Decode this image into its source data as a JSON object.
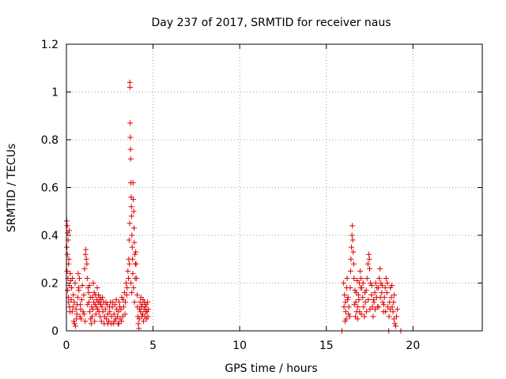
{
  "chart_data": {
    "type": "scatter",
    "title": "Day 237 of 2017, SRMTID for receiver naus",
    "xlabel": "GPS time / hours",
    "ylabel": "SRMTID / TECUs",
    "xlim": [
      0,
      24
    ],
    "ylim": [
      0,
      1.2
    ],
    "x_ticks": [
      0,
      5,
      10,
      15,
      20
    ],
    "x_tick_labels": [
      "0",
      "5",
      "10",
      "15",
      "20"
    ],
    "y_ticks": [
      0,
      0.2,
      0.4,
      0.6,
      0.8,
      1.0,
      1.2
    ],
    "y_tick_labels": [
      "0",
      "0.2",
      "0.4",
      "0.6",
      "0.8",
      "1",
      "1.2"
    ],
    "grid": true,
    "marker": "+",
    "colors": {
      "series": "#e00000",
      "axis": "#000000",
      "grid": "#a0a0a0"
    },
    "series": [
      {
        "name": "SRMTID",
        "points": [
          [
            0.02,
            0.46
          ],
          [
            0.05,
            0.44
          ],
          [
            0.08,
            0.41
          ],
          [
            0.1,
            0.38
          ],
          [
            0.03,
            0.35
          ],
          [
            0.06,
            0.32
          ],
          [
            0.12,
            0.28
          ],
          [
            0.04,
            0.25
          ],
          [
            0.09,
            0.22
          ],
          [
            0.15,
            0.19
          ],
          [
            0.07,
            0.17
          ],
          [
            0.11,
            0.14
          ],
          [
            0.13,
            0.12
          ],
          [
            0.18,
            0.1
          ],
          [
            0.2,
            0.08
          ],
          [
            0.16,
            0.42
          ],
          [
            0.14,
            0.3
          ],
          [
            0.22,
            0.24
          ],
          [
            0.25,
            0.21
          ],
          [
            0.3,
            0.18
          ],
          [
            0.35,
            0.22
          ],
          [
            0.4,
            0.15
          ],
          [
            0.45,
            0.12
          ],
          [
            0.5,
            0.2
          ],
          [
            0.55,
            0.09
          ],
          [
            0.6,
            0.07
          ],
          [
            0.65,
            0.14
          ],
          [
            0.7,
            0.18
          ],
          [
            0.75,
            0.22
          ],
          [
            0.8,
            0.11
          ],
          [
            0.85,
            0.05
          ],
          [
            0.28,
            0.13
          ],
          [
            0.33,
            0.08
          ],
          [
            0.38,
            0.1
          ],
          [
            0.42,
            0.04
          ],
          [
            0.47,
            0.03
          ],
          [
            0.52,
            0.02
          ],
          [
            0.58,
            0.05
          ],
          [
            0.62,
            0.11
          ],
          [
            0.68,
            0.24
          ],
          [
            0.72,
            0.17
          ],
          [
            0.78,
            0.06
          ],
          [
            0.82,
            0.09
          ],
          [
            0.88,
            0.13
          ],
          [
            0.92,
            0.19
          ],
          [
            0.96,
            0.08
          ],
          [
            1.0,
            0.15
          ],
          [
            1.05,
            0.26
          ],
          [
            1.1,
            0.32
          ],
          [
            1.12,
            0.34
          ],
          [
            1.15,
            0.3
          ],
          [
            1.18,
            0.28
          ],
          [
            1.2,
            0.22
          ],
          [
            1.25,
            0.18
          ],
          [
            1.3,
            0.12
          ],
          [
            1.35,
            0.08
          ],
          [
            1.4,
            0.05
          ],
          [
            1.45,
            0.1
          ],
          [
            1.5,
            0.14
          ],
          [
            1.55,
            0.2
          ],
          [
            1.6,
            0.16
          ],
          [
            1.65,
            0.11
          ],
          [
            1.7,
            0.07
          ],
          [
            1.75,
            0.13
          ],
          [
            1.8,
            0.09
          ],
          [
            1.85,
            0.15
          ],
          [
            1.9,
            0.12
          ],
          [
            1.95,
            0.06
          ],
          [
            1.02,
            0.07
          ],
          [
            1.08,
            0.04
          ],
          [
            1.22,
            0.11
          ],
          [
            1.28,
            0.16
          ],
          [
            1.33,
            0.19
          ],
          [
            1.38,
            0.14
          ],
          [
            1.43,
            0.03
          ],
          [
            1.48,
            0.06
          ],
          [
            1.53,
            0.09
          ],
          [
            1.58,
            0.12
          ],
          [
            1.63,
            0.04
          ],
          [
            1.68,
            0.15
          ],
          [
            1.73,
            0.1
          ],
          [
            1.78,
            0.18
          ],
          [
            1.83,
            0.12
          ],
          [
            1.88,
            0.08
          ],
          [
            1.93,
            0.14
          ],
          [
            1.98,
            0.11
          ],
          [
            2.0,
            0.13
          ],
          [
            2.05,
            0.1
          ],
          [
            2.1,
            0.08
          ],
          [
            2.15,
            0.12
          ],
          [
            2.2,
            0.06
          ],
          [
            2.25,
            0.09
          ],
          [
            2.3,
            0.05
          ],
          [
            2.35,
            0.11
          ],
          [
            2.4,
            0.07
          ],
          [
            2.45,
            0.04
          ],
          [
            2.5,
            0.08
          ],
          [
            2.55,
            0.12
          ],
          [
            2.6,
            0.06
          ],
          [
            2.65,
            0.1
          ],
          [
            2.7,
            0.03
          ],
          [
            2.75,
            0.07
          ],
          [
            2.8,
            0.11
          ],
          [
            2.85,
            0.05
          ],
          [
            2.9,
            0.09
          ],
          [
            2.95,
            0.06
          ],
          [
            2.02,
            0.04
          ],
          [
            2.08,
            0.14
          ],
          [
            2.18,
            0.03
          ],
          [
            2.28,
            0.12
          ],
          [
            2.38,
            0.03
          ],
          [
            2.48,
            0.1
          ],
          [
            2.58,
            0.03
          ],
          [
            2.68,
            0.12
          ],
          [
            2.78,
            0.04
          ],
          [
            2.88,
            0.13
          ],
          [
            2.98,
            0.03
          ],
          [
            3.0,
            0.08
          ],
          [
            3.05,
            0.12
          ],
          [
            3.1,
            0.05
          ],
          [
            3.15,
            0.09
          ],
          [
            3.2,
            0.14
          ],
          [
            3.25,
            0.06
          ],
          [
            3.3,
            0.1
          ],
          [
            3.35,
            0.16
          ],
          [
            3.4,
            0.12
          ],
          [
            3.45,
            0.2
          ],
          [
            3.5,
            0.18
          ],
          [
            3.55,
            0.25
          ],
          [
            3.6,
            0.3
          ],
          [
            3.62,
            0.38
          ],
          [
            3.65,
            0.45
          ],
          [
            3.66,
            1.04
          ],
          [
            3.67,
            1.02
          ],
          [
            3.68,
            0.87
          ],
          [
            3.69,
            0.81
          ],
          [
            3.7,
            0.76
          ],
          [
            3.71,
            0.72
          ],
          [
            3.72,
            0.62
          ],
          [
            3.74,
            0.56
          ],
          [
            3.75,
            0.52
          ],
          [
            3.76,
            0.48
          ],
          [
            3.78,
            0.4
          ],
          [
            3.8,
            0.35
          ],
          [
            3.82,
            0.3
          ],
          [
            3.84,
            0.62
          ],
          [
            3.86,
            0.55
          ],
          [
            3.88,
            0.5
          ],
          [
            3.9,
            0.43
          ],
          [
            3.92,
            0.37
          ],
          [
            3.95,
            0.32
          ],
          [
            3.98,
            0.28
          ],
          [
            3.02,
            0.03
          ],
          [
            3.08,
            0.1
          ],
          [
            3.18,
            0.04
          ],
          [
            3.28,
            0.13
          ],
          [
            3.38,
            0.07
          ],
          [
            3.48,
            0.15
          ],
          [
            3.58,
            0.22
          ],
          [
            3.63,
            0.28
          ],
          [
            3.73,
            0.2
          ],
          [
            3.77,
            0.16
          ],
          [
            3.83,
            0.24
          ],
          [
            3.87,
            0.18
          ],
          [
            3.93,
            0.12
          ],
          [
            3.97,
            0.22
          ],
          [
            4.0,
            0.33
          ],
          [
            4.02,
            0.28
          ],
          [
            4.05,
            0.22
          ],
          [
            4.08,
            0.15
          ],
          [
            4.1,
            0.1
          ],
          [
            4.12,
            0.06
          ],
          [
            4.15,
            0.03
          ],
          [
            4.18,
            0.01
          ],
          [
            4.2,
            0.05
          ],
          [
            4.22,
            0.09
          ],
          [
            4.25,
            0.12
          ],
          [
            4.28,
            0.08
          ],
          [
            4.3,
            0.14
          ],
          [
            4.32,
            0.1
          ],
          [
            4.35,
            0.06
          ],
          [
            4.38,
            0.11
          ],
          [
            4.4,
            0.07
          ],
          [
            4.42,
            0.13
          ],
          [
            4.45,
            0.04
          ],
          [
            4.48,
            0.09
          ],
          [
            4.5,
            0.12
          ],
          [
            4.52,
            0.06
          ],
          [
            4.55,
            0.1
          ],
          [
            4.58,
            0.08
          ],
          [
            4.6,
            0.11
          ],
          [
            4.62,
            0.05
          ],
          [
            4.65,
            0.08
          ],
          [
            4.68,
            0.12
          ],
          [
            4.7,
            0.06
          ],
          [
            4.72,
            0.09
          ],
          [
            15.9,
            0.0
          ],
          [
            16.0,
            0.2
          ],
          [
            16.05,
            0.15
          ],
          [
            16.1,
            0.12
          ],
          [
            16.12,
            0.08
          ],
          [
            16.15,
            0.05
          ],
          [
            16.18,
            0.18
          ],
          [
            16.2,
            0.22
          ],
          [
            16.25,
            0.14
          ],
          [
            16.3,
            0.1
          ],
          [
            16.35,
            0.06
          ],
          [
            16.4,
            0.25
          ],
          [
            16.42,
            0.3
          ],
          [
            16.45,
            0.35
          ],
          [
            16.48,
            0.4
          ],
          [
            16.5,
            0.44
          ],
          [
            16.52,
            0.38
          ],
          [
            16.55,
            0.33
          ],
          [
            16.58,
            0.28
          ],
          [
            16.6,
            0.22
          ],
          [
            16.65,
            0.17
          ],
          [
            16.7,
            0.12
          ],
          [
            16.75,
            0.08
          ],
          [
            16.8,
            0.05
          ],
          [
            16.85,
            0.15
          ],
          [
            16.9,
            0.2
          ],
          [
            16.95,
            0.25
          ],
          [
            16.02,
            0.1
          ],
          [
            16.08,
            0.04
          ],
          [
            16.22,
            0.13
          ],
          [
            16.28,
            0.07
          ],
          [
            16.38,
            0.18
          ],
          [
            16.62,
            0.11
          ],
          [
            16.68,
            0.06
          ],
          [
            16.72,
            0.16
          ],
          [
            16.78,
            0.21
          ],
          [
            16.82,
            0.1
          ],
          [
            16.88,
            0.13
          ],
          [
            16.92,
            0.08
          ],
          [
            16.98,
            0.18
          ],
          [
            17.0,
            0.22
          ],
          [
            17.05,
            0.18
          ],
          [
            17.1,
            0.14
          ],
          [
            17.15,
            0.1
          ],
          [
            17.2,
            0.06
          ],
          [
            17.25,
            0.12
          ],
          [
            17.3,
            0.17
          ],
          [
            17.35,
            0.22
          ],
          [
            17.4,
            0.28
          ],
          [
            17.45,
            0.32
          ],
          [
            17.48,
            0.3
          ],
          [
            17.5,
            0.26
          ],
          [
            17.55,
            0.2
          ],
          [
            17.6,
            0.15
          ],
          [
            17.65,
            0.1
          ],
          [
            17.7,
            0.06
          ],
          [
            17.75,
            0.12
          ],
          [
            17.8,
            0.16
          ],
          [
            17.85,
            0.2
          ],
          [
            17.9,
            0.14
          ],
          [
            17.95,
            0.1
          ],
          [
            17.02,
            0.07
          ],
          [
            17.12,
            0.2
          ],
          [
            17.22,
            0.16
          ],
          [
            17.32,
            0.08
          ],
          [
            17.42,
            0.13
          ],
          [
            17.52,
            0.09
          ],
          [
            17.62,
            0.19
          ],
          [
            17.72,
            0.13
          ],
          [
            17.82,
            0.09
          ],
          [
            17.92,
            0.18
          ],
          [
            18.0,
            0.18
          ],
          [
            18.05,
            0.22
          ],
          [
            18.1,
            0.26
          ],
          [
            18.15,
            0.2
          ],
          [
            18.2,
            0.16
          ],
          [
            18.25,
            0.12
          ],
          [
            18.3,
            0.08
          ],
          [
            18.35,
            0.14
          ],
          [
            18.4,
            0.18
          ],
          [
            18.45,
            0.22
          ],
          [
            18.5,
            0.16
          ],
          [
            18.55,
            0.1
          ],
          [
            18.6,
            0.0
          ],
          [
            18.62,
            0.06
          ],
          [
            18.65,
            0.12
          ],
          [
            18.7,
            0.18
          ],
          [
            18.75,
            0.14
          ],
          [
            18.8,
            0.1
          ],
          [
            18.85,
            0.08
          ],
          [
            18.9,
            0.05
          ],
          [
            18.95,
            0.03
          ],
          [
            18.02,
            0.1
          ],
          [
            18.12,
            0.14
          ],
          [
            18.22,
            0.19
          ],
          [
            18.32,
            0.11
          ],
          [
            18.42,
            0.08
          ],
          [
            18.52,
            0.2
          ],
          [
            18.68,
            0.09
          ],
          [
            18.78,
            0.19
          ],
          [
            18.88,
            0.12
          ],
          [
            18.92,
            0.15
          ],
          [
            19.0,
            0.02
          ],
          [
            19.05,
            0.06
          ],
          [
            19.1,
            0.09
          ],
          [
            19.3,
            0.0
          ]
        ]
      }
    ]
  }
}
